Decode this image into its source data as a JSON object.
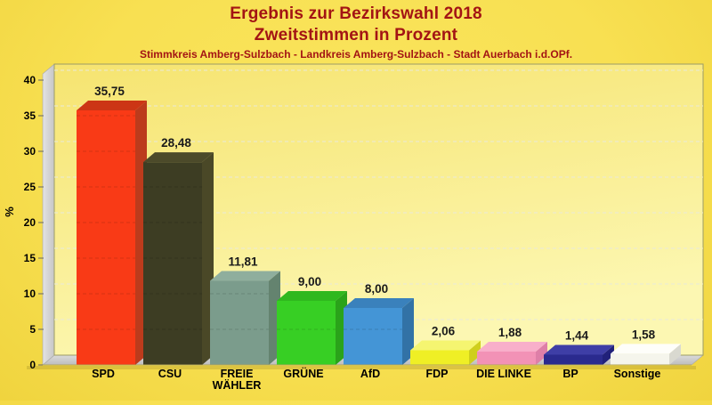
{
  "header": {
    "title_line1": "Ergebnis zur Bezirkswahl 2018",
    "title_line2": "Zweitstimmen in Prozent",
    "subtitle": "Stimmkreis Amberg-Sulzbach - Landkreis Amberg-Sulzbach - Stadt Auerbach i.d.OPf."
  },
  "colors": {
    "title_text": "#a31414",
    "page_background": "#f8e052",
    "plot_bg_top": "#f6e470",
    "plot_bg_bottom": "#fcf7b2",
    "plot_border": "#9c9c66",
    "wall_light": "#e3e3e3",
    "wall_dark": "#c6c6c6",
    "floor_back": "#dadada",
    "floor_front": "#bdbdbd",
    "grid_light": "#e9e9da",
    "grid_dark": "rgba(0,0,0,0.14)",
    "tick_text": "#000000",
    "value_text": "#1a1a1a",
    "category_text": "#000000"
  },
  "chart_data": {
    "type": "bar",
    "style": "3d-columns",
    "title": "Ergebnis zur Bezirkswahl 2018",
    "subtitle": "Zweitstimmen in Prozent",
    "footnote": "Stimmkreis Amberg-Sulzbach - Landkreis Amberg-Sulzbach - Stadt Auerbach i.d.OPf.",
    "ylabel": "%",
    "ylim": [
      0,
      40
    ],
    "yticks": [
      0,
      5,
      10,
      15,
      20,
      25,
      30,
      35,
      40
    ],
    "grid": true,
    "legend": false,
    "categories": [
      "SPD",
      "CSU",
      "FREIE WÄHLER",
      "GRÜNE",
      "AfD",
      "FDP",
      "DIE LINKE",
      "BP",
      "Sonstige"
    ],
    "values": [
      35.75,
      28.48,
      11.81,
      9.0,
      8.0,
      2.06,
      1.88,
      1.44,
      1.58
    ],
    "bars": [
      {
        "label": "SPD",
        "lines": [
          "SPD"
        ],
        "value": 35.75,
        "value_label": "35,75",
        "front": "#f93a16",
        "top": "#cc3515",
        "side": "#bc3b1c"
      },
      {
        "label": "CSU",
        "lines": [
          "CSU"
        ],
        "value": 28.48,
        "value_label": "28,48",
        "front": "#3d3d23",
        "top": "#4c4a2a",
        "side": "#4a4827"
      },
      {
        "label": "FREIE WÄHLER",
        "lines": [
          "FREIE",
          "WÄHLER"
        ],
        "value": 11.81,
        "value_label": "11,81",
        "front": "#7b9c8c",
        "top": "#8fae9d",
        "side": "#64836f"
      },
      {
        "label": "GRÜNE",
        "lines": [
          "GRÜNE"
        ],
        "value": 9.0,
        "value_label": "9,00",
        "front": "#37cf24",
        "top": "#2fb81e",
        "side": "#2aa31a"
      },
      {
        "label": "AfD",
        "lines": [
          "AfD"
        ],
        "value": 8.0,
        "value_label": "8,00",
        "front": "#4495d6",
        "top": "#3a81bc",
        "side": "#3272a6"
      },
      {
        "label": "FDP",
        "lines": [
          "FDP"
        ],
        "value": 2.06,
        "value_label": "2,06",
        "front": "#efef25",
        "top": "#f5f570",
        "side": "#cfcf1d"
      },
      {
        "label": "DIE LINKE",
        "lines": [
          "DIE LINKE"
        ],
        "value": 1.88,
        "value_label": "1,88",
        "front": "#f292b6",
        "top": "#f8afca",
        "side": "#de7fa8"
      },
      {
        "label": "BP",
        "lines": [
          "BP"
        ],
        "value": 1.44,
        "value_label": "1,44",
        "front": "#2a2a8e",
        "top": "#3e3ea6",
        "side": "#21217a"
      },
      {
        "label": "Sonstige",
        "lines": [
          "Sonstige"
        ],
        "value": 1.58,
        "value_label": "1,58",
        "front": "#f5f5ec",
        "top": "#fefefa",
        "side": "#d9d9d0"
      }
    ]
  }
}
